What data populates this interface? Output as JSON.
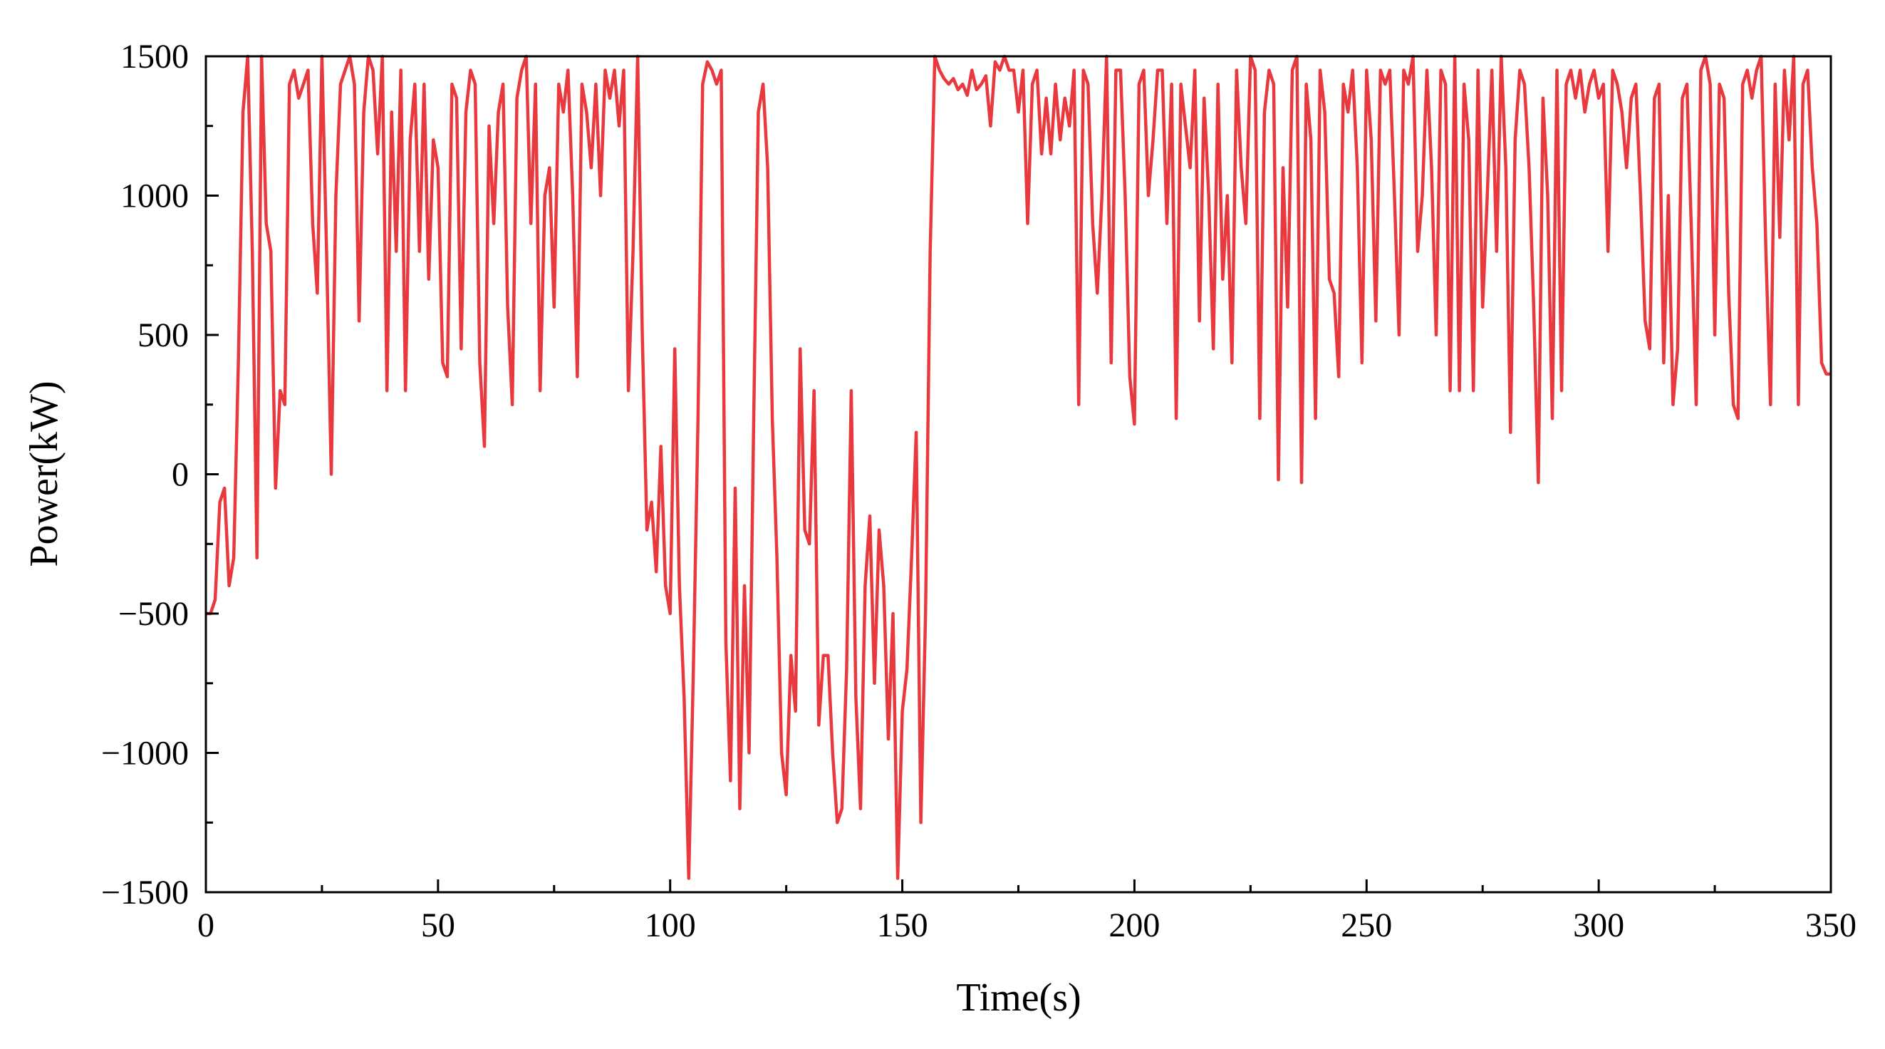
{
  "chart_data": {
    "type": "line",
    "xlabel": "Time(s)",
    "ylabel": "Power(kW)",
    "xlim": [
      0,
      350
    ],
    "ylim": [
      -1500,
      1500
    ],
    "xticks": [
      0,
      50,
      100,
      150,
      200,
      250,
      300,
      350
    ],
    "yticks": [
      {
        "value": -1500,
        "label": "−1500"
      },
      {
        "value": -1000,
        "label": "−1000"
      },
      {
        "value": -500,
        "label": "−500"
      },
      0,
      500,
      1000,
      1500
    ],
    "x": [
      0,
      1,
      2,
      3,
      4,
      5,
      6,
      7,
      8,
      9,
      10,
      11,
      12,
      13,
      14,
      15,
      16,
      17,
      18,
      19,
      20,
      21,
      22,
      23,
      24,
      25,
      26,
      27,
      28,
      29,
      30,
      31,
      32,
      33,
      34,
      35,
      36,
      37,
      38,
      39,
      40,
      41,
      42,
      43,
      44,
      45,
      46,
      47,
      48,
      49,
      50,
      51,
      52,
      53,
      54,
      55,
      56,
      57,
      58,
      59,
      60,
      61,
      62,
      63,
      64,
      65,
      66,
      67,
      68,
      69,
      70,
      71,
      72,
      73,
      74,
      75,
      76,
      77,
      78,
      79,
      80,
      81,
      82,
      83,
      84,
      85,
      86,
      87,
      88,
      89,
      90,
      91,
      92,
      93,
      94,
      95,
      96,
      97,
      98,
      99,
      100,
      101,
      102,
      103,
      104,
      105,
      106,
      107,
      108,
      109,
      110,
      111,
      112,
      113,
      114,
      115,
      116,
      117,
      118,
      119,
      120,
      121,
      122,
      123,
      124,
      125,
      126,
      127,
      128,
      129,
      130,
      131,
      132,
      133,
      134,
      135,
      136,
      137,
      138,
      139,
      140,
      141,
      142,
      143,
      144,
      145,
      146,
      147,
      148,
      149,
      150,
      151,
      152,
      153,
      154,
      155,
      156,
      157,
      158,
      159,
      160,
      161,
      162,
      163,
      164,
      165,
      166,
      167,
      168,
      169,
      170,
      171,
      172,
      173,
      174,
      175,
      176,
      177,
      178,
      179,
      180,
      181,
      182,
      183,
      184,
      185,
      186,
      187,
      188,
      189,
      190,
      191,
      192,
      193,
      194,
      195,
      196,
      197,
      198,
      199,
      200,
      201,
      202,
      203,
      204,
      205,
      206,
      207,
      208,
      209,
      210,
      211,
      212,
      213,
      214,
      215,
      216,
      217,
      218,
      219,
      220,
      221,
      222,
      223,
      224,
      225,
      226,
      227,
      228,
      229,
      230,
      231,
      232,
      233,
      234,
      235,
      236,
      237,
      238,
      239,
      240,
      241,
      242,
      243,
      244,
      245,
      246,
      247,
      248,
      249,
      250,
      251,
      252,
      253,
      254,
      255,
      256,
      257,
      258,
      259,
      260,
      261,
      262,
      263,
      264,
      265,
      266,
      267,
      268,
      269,
      270,
      271,
      272,
      273,
      274,
      275,
      276,
      277,
      278,
      279,
      280,
      281,
      282,
      283,
      284,
      285,
      286,
      287,
      288,
      289,
      290,
      291,
      292,
      293,
      294,
      295,
      296,
      297,
      298,
      299,
      300,
      301,
      302,
      303,
      304,
      305,
      306,
      307,
      308,
      309,
      310,
      311,
      312,
      313,
      314,
      315,
      316,
      317,
      318,
      319,
      320,
      321,
      322,
      323,
      324,
      325,
      326,
      327,
      328,
      329,
      330,
      331,
      332,
      333,
      334,
      335,
      336,
      337,
      338,
      339,
      340,
      341,
      342,
      343,
      344,
      345,
      346,
      347,
      348,
      349,
      350
    ],
    "series": [
      {
        "name": "Power",
        "color": "#e8393e",
        "values": [
          -500,
          -500,
          -450,
          -100,
          -50,
          -400,
          -300,
          400,
          1300,
          1500,
          800,
          -300,
          1500,
          900,
          800,
          -50,
          300,
          250,
          1400,
          1450,
          1350,
          1400,
          1450,
          900,
          650,
          1500,
          800,
          0,
          1000,
          1400,
          1450,
          1500,
          1400,
          550,
          1300,
          1500,
          1450,
          1150,
          1500,
          300,
          1300,
          800,
          1450,
          300,
          1200,
          1400,
          800,
          1400,
          700,
          1200,
          1100,
          400,
          350,
          1400,
          1350,
          450,
          1300,
          1450,
          1400,
          400,
          100,
          1250,
          900,
          1300,
          1400,
          600,
          250,
          1350,
          1450,
          1500,
          900,
          1400,
          300,
          1000,
          1100,
          600,
          1400,
          1300,
          1450,
          1000,
          350,
          1400,
          1300,
          1100,
          1400,
          1000,
          1450,
          1350,
          1450,
          1250,
          1450,
          300,
          800,
          1500,
          500,
          -200,
          -100,
          -350,
          100,
          -400,
          -500,
          450,
          -400,
          -800,
          -1450,
          -700,
          200,
          1400,
          1480,
          1450,
          1400,
          1450,
          -600,
          -1100,
          -50,
          -1200,
          -400,
          -1000,
          200,
          1300,
          1400,
          1100,
          200,
          -300,
          -1000,
          -1150,
          -650,
          -850,
          450,
          -200,
          -250,
          300,
          -900,
          -650,
          -650,
          -1000,
          -1250,
          -1200,
          -700,
          300,
          -800,
          -1200,
          -400,
          -150,
          -750,
          -200,
          -400,
          -950,
          -500,
          -1450,
          -850,
          -700,
          -300,
          150,
          -1250,
          -500,
          800,
          1500,
          1450,
          1420,
          1400,
          1420,
          1380,
          1400,
          1360,
          1450,
          1380,
          1400,
          1430,
          1250,
          1480,
          1450,
          1500,
          1450,
          1450,
          1300,
          1450,
          900,
          1400,
          1450,
          1150,
          1350,
          1150,
          1400,
          1200,
          1350,
          1250,
          1450,
          250,
          1450,
          1400,
          900,
          650,
          1000,
          1500,
          400,
          1450,
          1450,
          1000,
          350,
          180,
          1400,
          1450,
          1000,
          1200,
          1450,
          1450,
          900,
          1400,
          200,
          1400,
          1250,
          1100,
          1450,
          550,
          1350,
          1000,
          450,
          1400,
          700,
          1000,
          400,
          1450,
          1100,
          900,
          1500,
          1450,
          200,
          1300,
          1450,
          1400,
          -20,
          1100,
          600,
          1450,
          1500,
          -30,
          1400,
          1200,
          200,
          1450,
          1300,
          700,
          650,
          350,
          1400,
          1300,
          1450,
          1100,
          400,
          1450,
          1200,
          550,
          1450,
          1400,
          1450,
          1000,
          500,
          1450,
          1400,
          1500,
          800,
          1000,
          1450,
          1100,
          500,
          1450,
          1400,
          300,
          1500,
          300,
          1400,
          1200,
          300,
          1450,
          600,
          1000,
          1450,
          800,
          1500,
          1100,
          150,
          1200,
          1450,
          1400,
          1100,
          600,
          -30,
          1350,
          1000,
          200,
          1450,
          300,
          1400,
          1450,
          1350,
          1450,
          1300,
          1400,
          1450,
          1350,
          1400,
          800,
          1450,
          1400,
          1300,
          1100,
          1350,
          1400,
          1000,
          550,
          450,
          1350,
          1400,
          400,
          1000,
          250,
          450,
          1350,
          1400,
          850,
          250,
          1450,
          1500,
          1400,
          500,
          1400,
          1350,
          650,
          250,
          200,
          1400,
          1450,
          1350,
          1450,
          1500,
          800,
          250,
          1400,
          850,
          1450,
          1200,
          1500,
          250,
          1400,
          1450,
          1100,
          900,
          400,
          360,
          360
        ]
      }
    ]
  }
}
